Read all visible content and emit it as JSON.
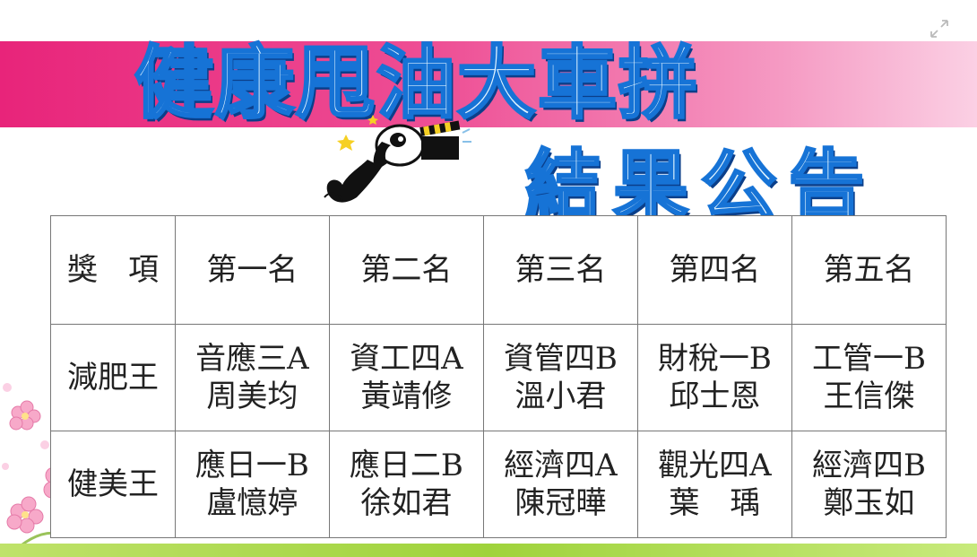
{
  "title": {
    "main": "健康甩油大車拼",
    "sub": "結果公告"
  },
  "table": {
    "header": [
      "獎　項",
      "第一名",
      "第二名",
      "第三名",
      "第四名",
      "第五名"
    ],
    "rows": [
      {
        "award": "減肥王",
        "winners": [
          {
            "dept": "音應三A",
            "name": "周美均"
          },
          {
            "dept": "資工四A",
            "name": "黃靖修"
          },
          {
            "dept": "資管四B",
            "name": "溫小君"
          },
          {
            "dept": "財稅一B",
            "name": "邱士恩"
          },
          {
            "dept": "工管一B",
            "name": "王信傑"
          }
        ]
      },
      {
        "award": "健美王",
        "winners": [
          {
            "dept": "應日一B",
            "name": "盧憶婷"
          },
          {
            "dept": "應日二B",
            "name": "徐如君"
          },
          {
            "dept": "經濟四A",
            "name": "陳冠曄"
          },
          {
            "dept": "觀光四A",
            "name": "葉　瑀"
          },
          {
            "dept": "經濟四B",
            "name": "鄭玉如"
          }
        ]
      }
    ]
  },
  "colors": {
    "band_start": "#e8247a",
    "band_end": "#fbd0e4",
    "title_fill": "#dff3ff",
    "title_stroke": "#1673d6",
    "bottom_strip": "#9fd33b"
  },
  "icons": {
    "expand": "expand-icon",
    "mascot": "panda-clapperboard-icon",
    "flowers": "pink-flowers-icon"
  }
}
